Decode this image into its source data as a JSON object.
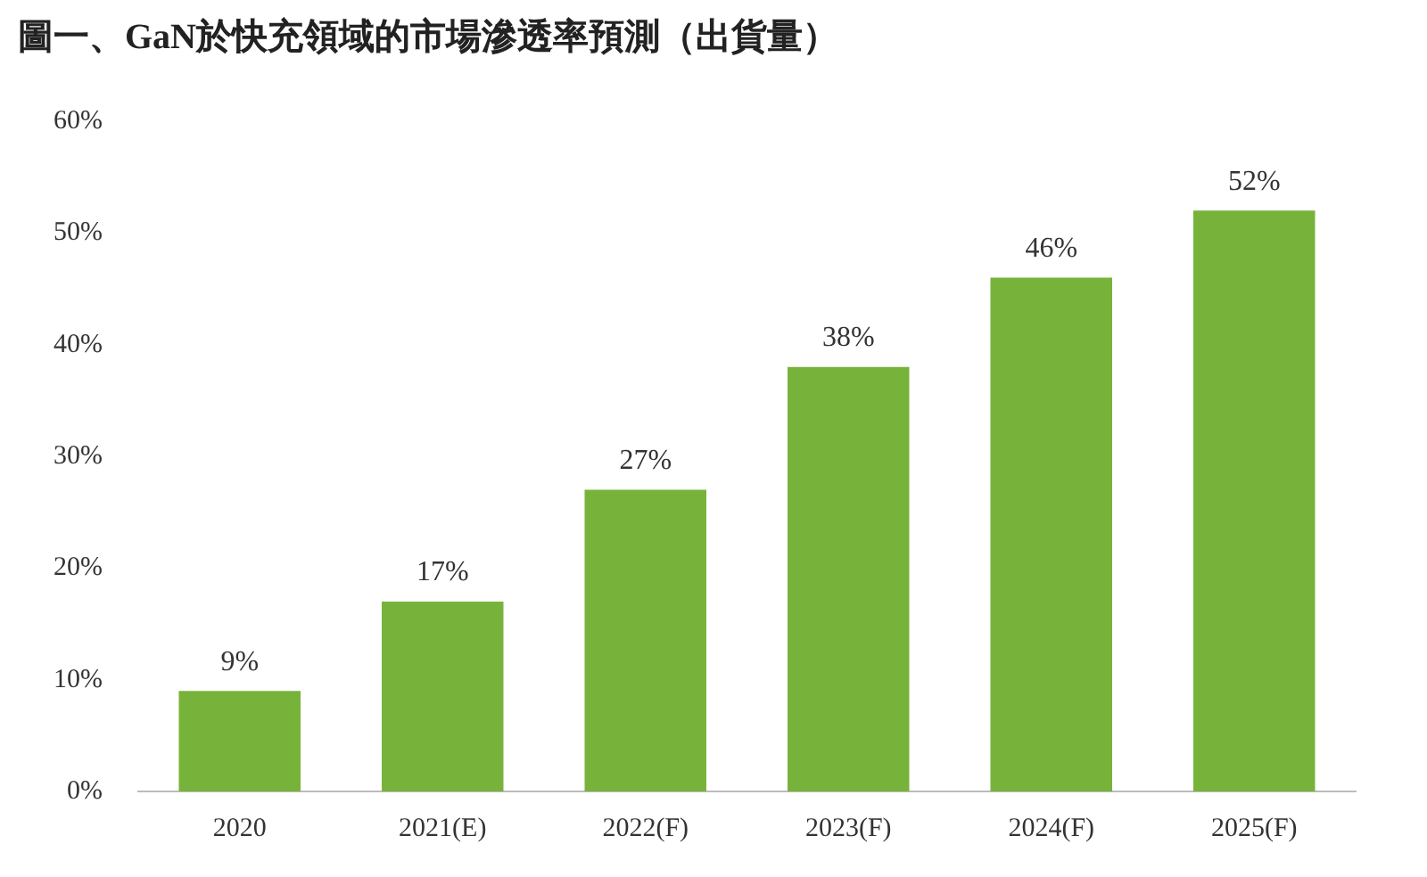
{
  "chart_data": {
    "type": "bar",
    "title": "圖一、GaN於快充領域的市場滲透率預測（出貨量）",
    "categories": [
      "2020",
      "2021(E)",
      "2022(F)",
      "2023(F)",
      "2024(F)",
      "2025(F)"
    ],
    "values": [
      9,
      17,
      27,
      38,
      46,
      52
    ],
    "value_labels": [
      "9%",
      "17%",
      "27%",
      "38%",
      "46%",
      "52%"
    ],
    "color": "#77b33a",
    "ylim": [
      0,
      60
    ],
    "yticks": [
      {
        "value": 0,
        "label": "0%"
      },
      {
        "value": 10,
        "label": "10%"
      },
      {
        "value": 20,
        "label": "20%"
      },
      {
        "value": 30,
        "label": "30%"
      },
      {
        "value": 40,
        "label": "40%"
      },
      {
        "value": 50,
        "label": "50%"
      },
      {
        "value": 60,
        "label": "60%"
      }
    ],
    "grid": false,
    "legend": false
  }
}
